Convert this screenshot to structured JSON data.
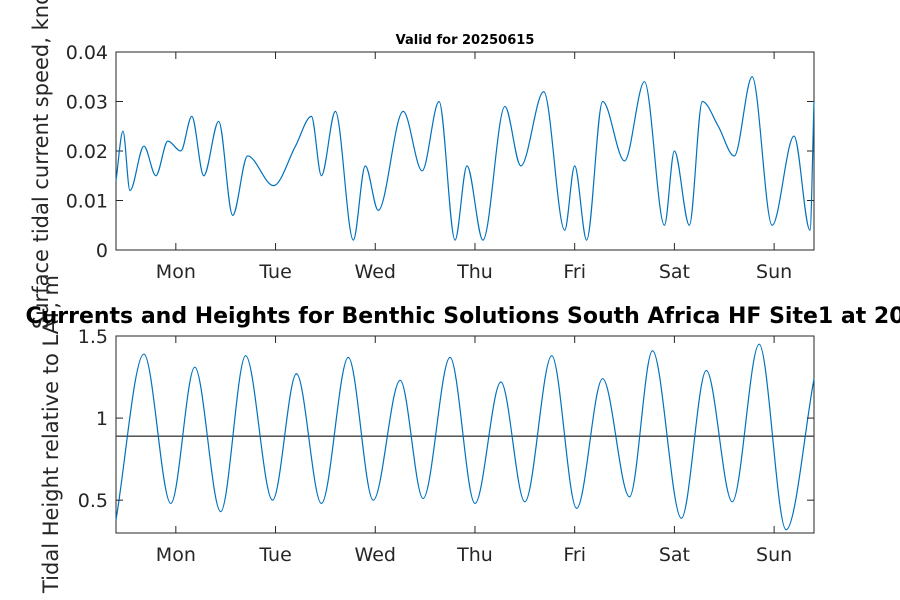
{
  "chart_data": [
    {
      "type": "line",
      "title": "Valid for 20250615",
      "ylabel": "Surface tidal current speed, knots",
      "xlabel": "",
      "xlim": [
        0,
        7
      ],
      "ylim": [
        0,
        0.04
      ],
      "yticks": [
        0,
        0.01,
        0.02,
        0.03,
        0.04
      ],
      "ytick_labels": [
        "0",
        "0.01",
        "0.02",
        "0.03",
        "0.04"
      ],
      "xticks": [
        0.6,
        1.6,
        2.6,
        3.6,
        4.6,
        5.6,
        6.6
      ],
      "xtick_labels": [
        "Mon",
        "Tue",
        "Wed",
        "Thu",
        "Fri",
        "Sat",
        "Sun"
      ],
      "grid": false,
      "series": [
        {
          "color": "#0072bd",
          "x": [
            0.0,
            0.07,
            0.14,
            0.28,
            0.4,
            0.52,
            0.65,
            0.76,
            0.88,
            1.03,
            1.17,
            1.32,
            1.58,
            1.8,
            1.96,
            2.06,
            2.2,
            2.38,
            2.5,
            2.63,
            2.88,
            3.07,
            3.24,
            3.4,
            3.52,
            3.68,
            3.9,
            4.06,
            4.29,
            4.5,
            4.6,
            4.72,
            4.88,
            5.1,
            5.3,
            5.5,
            5.6,
            5.75,
            5.88,
            6.04,
            6.2,
            6.38,
            6.58,
            6.8,
            6.96,
            7.0
          ],
          "values": [
            0.014,
            0.024,
            0.012,
            0.021,
            0.015,
            0.022,
            0.02,
            0.027,
            0.015,
            0.026,
            0.007,
            0.019,
            0.013,
            0.021,
            0.027,
            0.015,
            0.028,
            0.002,
            0.017,
            0.008,
            0.028,
            0.016,
            0.03,
            0.002,
            0.017,
            0.002,
            0.029,
            0.017,
            0.032,
            0.004,
            0.017,
            0.002,
            0.03,
            0.018,
            0.034,
            0.005,
            0.02,
            0.005,
            0.03,
            0.025,
            0.019,
            0.035,
            0.005,
            0.023,
            0.004,
            0.03
          ]
        }
      ]
    },
    {
      "type": "line",
      "title": "Currents and Heights for Benthic Solutions South Africa HF Site1 at 20",
      "ylabel": "Tidal Height relative to LAT, m",
      "xlabel": "",
      "xlim": [
        0,
        7
      ],
      "ylim": [
        0.3,
        1.5
      ],
      "yticks": [
        0.5,
        1,
        1.5
      ],
      "ytick_labels": [
        "0.5",
        "1",
        "1.5"
      ],
      "xticks": [
        0.6,
        1.6,
        2.6,
        3.6,
        4.6,
        5.6,
        6.6
      ],
      "xtick_labels": [
        "Mon",
        "Tue",
        "Wed",
        "Thu",
        "Fri",
        "Sat",
        "Sun"
      ],
      "reference_line": 0.89,
      "grid": false,
      "series": [
        {
          "color": "#0072bd",
          "x": [
            0.0,
            0.28,
            0.55,
            0.79,
            1.05,
            1.3,
            1.57,
            1.81,
            2.06,
            2.33,
            2.58,
            2.85,
            3.08,
            3.35,
            3.6,
            3.86,
            4.1,
            4.37,
            4.62,
            4.88,
            5.15,
            5.38,
            5.67,
            5.92,
            6.18,
            6.45,
            6.72,
            7.0
          ],
          "values": [
            0.38,
            1.39,
            0.48,
            1.31,
            0.43,
            1.38,
            0.5,
            1.27,
            0.48,
            1.37,
            0.5,
            1.23,
            0.51,
            1.37,
            0.48,
            1.22,
            0.49,
            1.38,
            0.45,
            1.24,
            0.52,
            1.41,
            0.39,
            1.29,
            0.49,
            1.45,
            0.32,
            1.24
          ]
        }
      ]
    }
  ]
}
